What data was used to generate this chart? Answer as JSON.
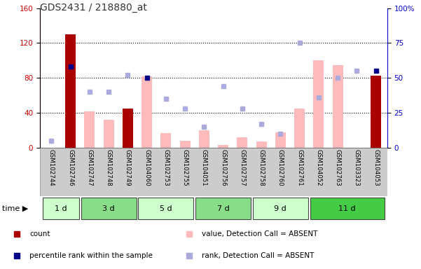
{
  "title": "GDS2431 / 218880_at",
  "samples": [
    "GSM102744",
    "GSM102746",
    "GSM102747",
    "GSM102748",
    "GSM102749",
    "GSM104060",
    "GSM102753",
    "GSM102755",
    "GSM104051",
    "GSM102756",
    "GSM102757",
    "GSM102758",
    "GSM102760",
    "GSM102761",
    "GSM104052",
    "GSM102763",
    "GSM103323",
    "GSM104053"
  ],
  "count_values": [
    0,
    130,
    0,
    0,
    45,
    0,
    0,
    0,
    0,
    0,
    0,
    0,
    0,
    0,
    0,
    0,
    0,
    83
  ],
  "absent_value_bars": [
    0,
    0,
    42,
    32,
    0,
    82,
    17,
    8,
    20,
    3,
    12,
    7,
    18,
    45,
    100,
    95,
    0,
    0
  ],
  "percentile_rank_dots": [
    0,
    58,
    0,
    0,
    0,
    50,
    0,
    0,
    0,
    0,
    0,
    0,
    0,
    0,
    0,
    0,
    0,
    55
  ],
  "absent_rank_dots": [
    5,
    0,
    40,
    40,
    52,
    0,
    35,
    28,
    15,
    44,
    28,
    17,
    10,
    75,
    36,
    50,
    55,
    0
  ],
  "time_groups": [
    {
      "label": "1 d",
      "start": 0,
      "end": 2,
      "color": "#ccffcc"
    },
    {
      "label": "3 d",
      "start": 2,
      "end": 5,
      "color": "#88dd88"
    },
    {
      "label": "5 d",
      "start": 5,
      "end": 8,
      "color": "#ccffcc"
    },
    {
      "label": "7 d",
      "start": 8,
      "end": 11,
      "color": "#88dd88"
    },
    {
      "label": "9 d",
      "start": 11,
      "end": 14,
      "color": "#ccffcc"
    },
    {
      "label": "11 d",
      "start": 14,
      "end": 18,
      "color": "#44cc44"
    }
  ],
  "left_ylim": [
    0,
    160
  ],
  "right_ylim": [
    0,
    100
  ],
  "left_yticks": [
    0,
    40,
    80,
    120,
    160
  ],
  "right_yticks": [
    0,
    25,
    50,
    75,
    100
  ],
  "right_yticklabels": [
    "0",
    "25",
    "50",
    "75",
    "100%"
  ],
  "bar_color_count": "#aa0000",
  "bar_color_absent": "#ffbbbb",
  "dot_color_percentile": "#000088",
  "dot_color_absent_rank": "#aaaadd",
  "left_axis_color": "#cc0000",
  "right_axis_color": "#0000cc"
}
